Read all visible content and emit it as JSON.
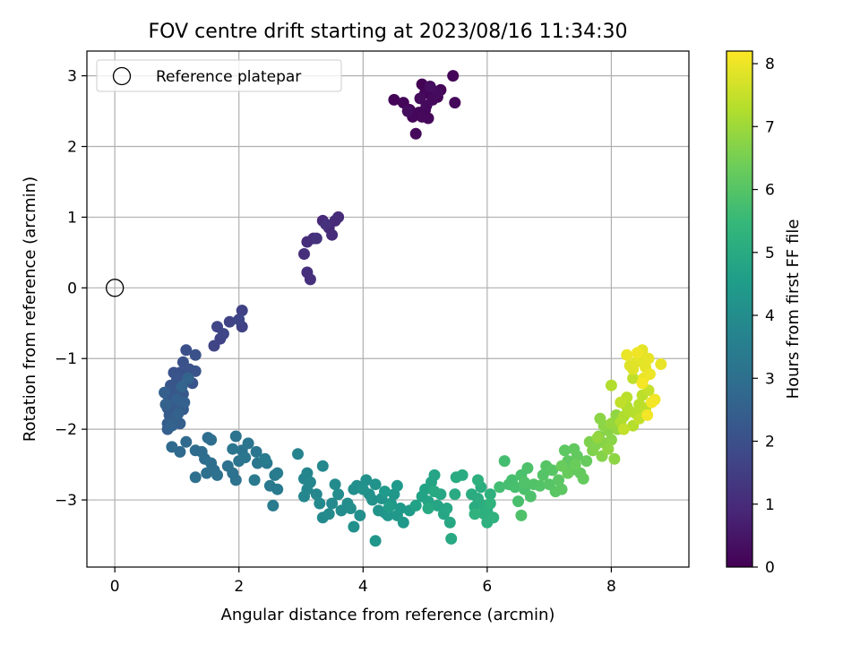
{
  "chart_data": {
    "type": "scatter",
    "title": "FOV centre drift starting at 2023/08/16 11:34:30",
    "xlabel": "Angular distance from reference (arcmin)",
    "ylabel": "Rotation from reference (arcmin)",
    "xlim": [
      -0.45,
      9.25
    ],
    "ylim": [
      -3.95,
      3.35
    ],
    "x_ticks": [
      0,
      2,
      4,
      6,
      8
    ],
    "y_ticks": [
      3,
      2,
      1,
      0,
      -1,
      -2,
      -3
    ],
    "x_tick_labels": [
      "0",
      "2",
      "4",
      "6",
      "8"
    ],
    "y_tick_labels": [
      "3",
      "2",
      "1",
      "0",
      "−1",
      "−2",
      "−3"
    ],
    "grid": true,
    "legend": {
      "position": "top-left",
      "entries": [
        "Reference platepar"
      ]
    },
    "reference_point": {
      "x": 0,
      "y": 0,
      "marker": "open-circle"
    },
    "colorbar": {
      "label": "Hours from first FF file",
      "colormap": "viridis",
      "range": [
        0,
        8.2
      ],
      "ticks": [
        0,
        1,
        2,
        3,
        4,
        5,
        6,
        7,
        8
      ],
      "tick_labels": [
        "0",
        "1",
        "2",
        "3",
        "4",
        "5",
        "6",
        "7",
        "8"
      ]
    },
    "points": [
      [
        4.95,
        2.88,
        0.02
      ],
      [
        5.05,
        2.82,
        0.03
      ],
      [
        5.15,
        2.78,
        0.04
      ],
      [
        5.25,
        2.8,
        0.05
      ],
      [
        5.1,
        2.72,
        0.06
      ],
      [
        5.2,
        2.7,
        0.07
      ],
      [
        5.45,
        3.0,
        0.08
      ],
      [
        5.0,
        2.76,
        0.09
      ],
      [
        4.5,
        2.66,
        0.1
      ],
      [
        4.65,
        2.62,
        0.11
      ],
      [
        4.75,
        2.52,
        0.12
      ],
      [
        4.9,
        2.48,
        0.13
      ],
      [
        5.0,
        2.52,
        0.14
      ],
      [
        4.8,
        2.42,
        0.15
      ],
      [
        4.95,
        2.42,
        0.16
      ],
      [
        5.05,
        2.4,
        0.17
      ],
      [
        4.85,
        2.18,
        0.18
      ],
      [
        5.48,
        2.62,
        0.19
      ],
      [
        5.12,
        2.66,
        0.2
      ],
      [
        5.02,
        2.58,
        0.22
      ],
      [
        4.92,
        2.68,
        0.24
      ],
      [
        5.2,
        2.76,
        0.26
      ],
      [
        4.72,
        2.5,
        0.28
      ],
      [
        5.08,
        2.85,
        0.3
      ],
      [
        3.35,
        0.95,
        0.95
      ],
      [
        3.45,
        0.85,
        0.97
      ],
      [
        3.55,
        0.95,
        0.99
      ],
      [
        3.6,
        1.0,
        1.01
      ],
      [
        3.5,
        0.75,
        1.03
      ],
      [
        3.1,
        0.65,
        1.05
      ],
      [
        3.2,
        0.7,
        1.07
      ],
      [
        3.05,
        0.48,
        1.09
      ],
      [
        3.1,
        0.22,
        1.11
      ],
      [
        3.15,
        0.12,
        1.13
      ],
      [
        3.4,
        0.9,
        1.15
      ],
      [
        3.25,
        0.7,
        1.17
      ],
      [
        2.05,
        -0.32,
        1.6
      ],
      [
        2.05,
        -0.55,
        1.62
      ],
      [
        1.85,
        -0.48,
        1.64
      ],
      [
        1.7,
        -0.72,
        1.66
      ],
      [
        1.6,
        -0.82,
        1.68
      ],
      [
        1.65,
        -0.55,
        1.7
      ],
      [
        2.0,
        -0.45,
        1.72
      ],
      [
        1.75,
        -0.65,
        1.74
      ],
      [
        1.15,
        -0.88,
        2.0
      ],
      [
        1.3,
        -0.95,
        2.02
      ],
      [
        1.1,
        -1.05,
        2.04
      ],
      [
        1.2,
        -1.15,
        2.06
      ],
      [
        1.05,
        -1.2,
        2.08
      ],
      [
        0.95,
        -1.2,
        2.1
      ],
      [
        1.3,
        -1.18,
        2.12
      ],
      [
        1.25,
        -1.35,
        2.14
      ],
      [
        1.0,
        -1.3,
        2.16
      ],
      [
        0.9,
        -1.38,
        2.18
      ],
      [
        1.05,
        -1.45,
        2.2
      ],
      [
        0.95,
        -1.5,
        2.22
      ],
      [
        0.85,
        -1.52,
        2.24
      ],
      [
        1.1,
        -1.5,
        2.26
      ],
      [
        0.9,
        -1.62,
        2.28
      ],
      [
        0.95,
        -1.72,
        2.3
      ],
      [
        0.85,
        -1.7,
        2.32
      ],
      [
        1.05,
        -1.68,
        2.34
      ],
      [
        1.1,
        -1.72,
        2.36
      ],
      [
        0.88,
        -1.8,
        2.38
      ],
      [
        0.95,
        -1.85,
        2.4
      ],
      [
        0.85,
        -1.92,
        2.42
      ],
      [
        1.05,
        -1.92,
        2.44
      ],
      [
        0.85,
        -2.0,
        2.46
      ],
      [
        0.8,
        -1.48,
        2.48
      ],
      [
        1.0,
        -1.58,
        2.5
      ],
      [
        1.12,
        -1.62,
        2.52
      ],
      [
        0.82,
        -1.65,
        2.54
      ],
      [
        1.02,
        -1.78,
        2.56
      ],
      [
        0.92,
        -1.95,
        2.58
      ],
      [
        1.08,
        -1.4,
        2.6
      ],
      [
        1.18,
        -1.28,
        2.62
      ],
      [
        0.92,
        -2.25,
        2.8
      ],
      [
        1.05,
        -2.32,
        2.82
      ],
      [
        1.15,
        -2.18,
        2.84
      ],
      [
        1.3,
        -2.3,
        2.86
      ],
      [
        1.4,
        -2.32,
        2.88
      ],
      [
        1.45,
        -2.42,
        2.9
      ],
      [
        1.5,
        -2.12,
        2.92
      ],
      [
        1.55,
        -2.15,
        2.94
      ],
      [
        1.55,
        -2.48,
        2.96
      ],
      [
        1.6,
        -2.58,
        2.98
      ],
      [
        1.48,
        -2.62,
        3.0
      ],
      [
        1.3,
        -2.68,
        3.02
      ],
      [
        1.65,
        -2.65,
        3.04
      ],
      [
        1.82,
        -2.52,
        3.06
      ],
      [
        1.9,
        -2.62,
        3.08
      ],
      [
        1.95,
        -2.72,
        3.1
      ],
      [
        1.95,
        -2.1,
        3.12
      ],
      [
        2.05,
        -2.3,
        3.14
      ],
      [
        2.0,
        -2.45,
        3.16
      ],
      [
        2.1,
        -2.4,
        3.18
      ],
      [
        2.15,
        -2.2,
        3.2
      ],
      [
        1.9,
        -2.28,
        3.22
      ],
      [
        2.28,
        -2.32,
        3.24
      ],
      [
        2.3,
        -2.48,
        3.26
      ],
      [
        2.45,
        -2.48,
        3.3
      ],
      [
        2.25,
        -2.72,
        3.32
      ],
      [
        2.5,
        -2.8,
        3.34
      ],
      [
        2.58,
        -2.65,
        3.36
      ],
      [
        2.62,
        -2.85,
        3.38
      ],
      [
        2.55,
        -3.08,
        3.4
      ],
      [
        2.62,
        -2.62,
        3.42
      ],
      [
        2.42,
        -2.42,
        3.44
      ],
      [
        2.95,
        -2.35,
        3.7
      ],
      [
        3.05,
        -2.7,
        3.72
      ],
      [
        3.1,
        -2.62,
        3.74
      ],
      [
        3.15,
        -2.75,
        3.76
      ],
      [
        3.1,
        -2.85,
        3.78
      ],
      [
        3.05,
        -2.95,
        3.8
      ],
      [
        3.25,
        -2.92,
        3.82
      ],
      [
        3.35,
        -2.52,
        3.84
      ],
      [
        3.3,
        -3.05,
        3.86
      ],
      [
        3.35,
        -3.25,
        3.88
      ],
      [
        3.5,
        -3.05,
        3.9
      ],
      [
        3.45,
        -3.2,
        3.92
      ],
      [
        3.55,
        -2.78,
        3.94
      ],
      [
        3.6,
        -2.92,
        3.96
      ],
      [
        3.65,
        -3.15,
        3.98
      ],
      [
        3.75,
        -3.05,
        4.0
      ],
      [
        3.8,
        -3.12,
        4.02
      ],
      [
        3.85,
        -2.85,
        4.04
      ],
      [
        3.9,
        -2.8,
        4.06
      ],
      [
        3.95,
        -3.22,
        4.08
      ],
      [
        3.85,
        -3.38,
        4.1
      ],
      [
        4.05,
        -2.72,
        4.12
      ],
      [
        4.1,
        -2.92,
        4.14
      ],
      [
        4.0,
        -2.85,
        4.16
      ],
      [
        4.15,
        -3.0,
        4.18
      ],
      [
        4.2,
        -2.78,
        4.2
      ],
      [
        4.25,
        -3.15,
        4.22
      ],
      [
        4.3,
        -2.98,
        4.24
      ],
      [
        4.35,
        -3.18,
        4.26
      ],
      [
        4.4,
        -3.22,
        4.28
      ],
      [
        4.2,
        -3.58,
        4.3
      ],
      [
        4.45,
        -3.05,
        4.32
      ],
      [
        4.5,
        -2.92,
        4.34
      ],
      [
        4.55,
        -3.22,
        4.36
      ],
      [
        4.6,
        -3.12,
        4.38
      ],
      [
        4.65,
        -3.32,
        4.4
      ],
      [
        4.55,
        -2.8,
        4.42
      ],
      [
        4.35,
        -2.88,
        4.44
      ],
      [
        4.75,
        -3.15,
        4.46
      ],
      [
        4.42,
        -3.1,
        4.48
      ],
      [
        4.85,
        -3.08,
        4.7
      ],
      [
        4.95,
        -2.95,
        4.72
      ],
      [
        5.0,
        -2.85,
        4.74
      ],
      [
        5.05,
        -3.02,
        4.76
      ],
      [
        5.1,
        -2.75,
        4.78
      ],
      [
        5.15,
        -2.65,
        4.8
      ],
      [
        5.2,
        -3.08,
        4.82
      ],
      [
        5.25,
        -2.92,
        4.84
      ],
      [
        5.3,
        -3.2,
        4.86
      ],
      [
        5.35,
        -3.12,
        4.88
      ],
      [
        5.4,
        -3.32,
        4.9
      ],
      [
        5.42,
        -3.55,
        4.92
      ],
      [
        5.05,
        -3.12,
        4.94
      ],
      [
        5.15,
        -2.88,
        4.96
      ],
      [
        5.48,
        -2.92,
        4.98
      ],
      [
        5.5,
        -2.68,
        5.0
      ],
      [
        5.6,
        -2.65,
        5.02
      ],
      [
        5.75,
        -2.92,
        5.04
      ],
      [
        5.8,
        -3.1,
        5.06
      ],
      [
        5.85,
        -2.98,
        5.08
      ],
      [
        5.9,
        -2.82,
        5.1
      ],
      [
        5.95,
        -3.08,
        5.12
      ],
      [
        6.0,
        -3.15,
        5.14
      ],
      [
        5.85,
        -2.72,
        5.16
      ],
      [
        5.95,
        -3.2,
        5.18
      ],
      [
        6.0,
        -3.32,
        5.2
      ],
      [
        6.05,
        -2.92,
        5.22
      ],
      [
        6.1,
        -3.25,
        5.24
      ],
      [
        5.8,
        -3.2,
        5.26
      ],
      [
        6.05,
        -3.05,
        5.28
      ],
      [
        6.2,
        -2.82,
        5.7
      ],
      [
        6.28,
        -2.45,
        5.72
      ],
      [
        6.35,
        -2.78,
        5.74
      ],
      [
        6.4,
        -2.72,
        5.76
      ],
      [
        6.45,
        -2.82,
        5.78
      ],
      [
        6.5,
        -3.02,
        5.8
      ],
      [
        6.55,
        -2.65,
        5.82
      ],
      [
        6.6,
        -2.85,
        5.84
      ],
      [
        6.65,
        -2.55,
        5.86
      ],
      [
        6.7,
        -2.95,
        5.88
      ],
      [
        6.55,
        -3.22,
        5.9
      ],
      [
        6.6,
        -2.75,
        5.92
      ],
      [
        6.75,
        -2.78,
        5.94
      ],
      [
        6.85,
        -2.8,
        5.96
      ],
      [
        6.9,
        -2.65,
        5.98
      ],
      [
        6.95,
        -2.52,
        6.0
      ],
      [
        7.0,
        -2.78,
        6.02
      ],
      [
        7.05,
        -2.58,
        6.04
      ],
      [
        7.1,
        -2.88,
        6.06
      ],
      [
        7.15,
        -2.72,
        6.08
      ],
      [
        7.2,
        -2.85,
        6.1
      ],
      [
        7.25,
        -2.3,
        6.12
      ],
      [
        7.3,
        -2.45,
        6.14
      ],
      [
        7.35,
        -2.58,
        6.16
      ],
      [
        7.4,
        -2.28,
        6.18
      ],
      [
        7.45,
        -2.38,
        6.2
      ],
      [
        7.5,
        -2.62,
        6.22
      ],
      [
        7.55,
        -2.7,
        6.24
      ],
      [
        7.6,
        -2.45,
        6.26
      ],
      [
        7.3,
        -2.62,
        6.28
      ],
      [
        7.2,
        -2.52,
        6.3
      ],
      [
        7.42,
        -2.5,
        6.32
      ],
      [
        7.65,
        -2.18,
        6.6
      ],
      [
        7.7,
        -2.3,
        6.62
      ],
      [
        7.75,
        -2.22,
        6.64
      ],
      [
        7.8,
        -2.1,
        6.66
      ],
      [
        7.85,
        -2.38,
        6.68
      ],
      [
        7.9,
        -2.2,
        6.7
      ],
      [
        7.95,
        -2.02,
        6.72
      ],
      [
        8.0,
        -2.15,
        6.74
      ],
      [
        7.82,
        -1.85,
        6.76
      ],
      [
        7.88,
        -1.95,
        6.78
      ],
      [
        8.05,
        -2.42,
        6.8
      ],
      [
        7.95,
        -2.28,
        6.82
      ],
      [
        8.08,
        -1.8,
        6.84
      ],
      [
        8.1,
        -2.0,
        6.86
      ],
      [
        7.78,
        -2.12,
        6.88
      ],
      [
        8.0,
        -1.92,
        6.9
      ],
      [
        8.15,
        -1.9,
        7.2
      ],
      [
        8.2,
        -1.82,
        7.22
      ],
      [
        8.25,
        -1.68,
        7.24
      ],
      [
        8.0,
        -1.38,
        7.26
      ],
      [
        8.3,
        -1.75,
        7.28
      ],
      [
        8.35,
        -1.95,
        7.3
      ],
      [
        8.4,
        -1.78,
        7.32
      ],
      [
        8.45,
        -1.65,
        7.34
      ],
      [
        8.25,
        -1.55,
        7.36
      ],
      [
        8.5,
        -1.52,
        7.38
      ],
      [
        8.55,
        -1.7,
        7.4
      ],
      [
        8.35,
        -1.28,
        7.42
      ],
      [
        8.15,
        -1.62,
        7.44
      ],
      [
        8.45,
        -1.85,
        7.46
      ],
      [
        8.2,
        -2.0,
        7.48
      ],
      [
        8.6,
        -1.45,
        7.5
      ],
      [
        8.3,
        -1.1,
        7.8
      ],
      [
        8.35,
        -1.15,
        7.82
      ],
      [
        8.4,
        -1.05,
        7.84
      ],
      [
        8.45,
        -1.0,
        7.86
      ],
      [
        8.5,
        -0.88,
        7.88
      ],
      [
        8.55,
        -1.12,
        7.9
      ],
      [
        8.6,
        -1.0,
        7.92
      ],
      [
        8.8,
        -1.08,
        7.94
      ],
      [
        8.25,
        -0.95,
        7.96
      ],
      [
        8.52,
        -1.28,
        7.98
      ],
      [
        8.62,
        -1.22,
        8.0
      ],
      [
        8.42,
        -0.92,
        8.02
      ],
      [
        8.7,
        -1.58,
        8.04
      ],
      [
        8.58,
        -1.8,
        8.06
      ],
      [
        8.65,
        -1.62,
        8.08
      ],
      [
        8.5,
        -1.35,
        8.1
      ]
    ]
  }
}
